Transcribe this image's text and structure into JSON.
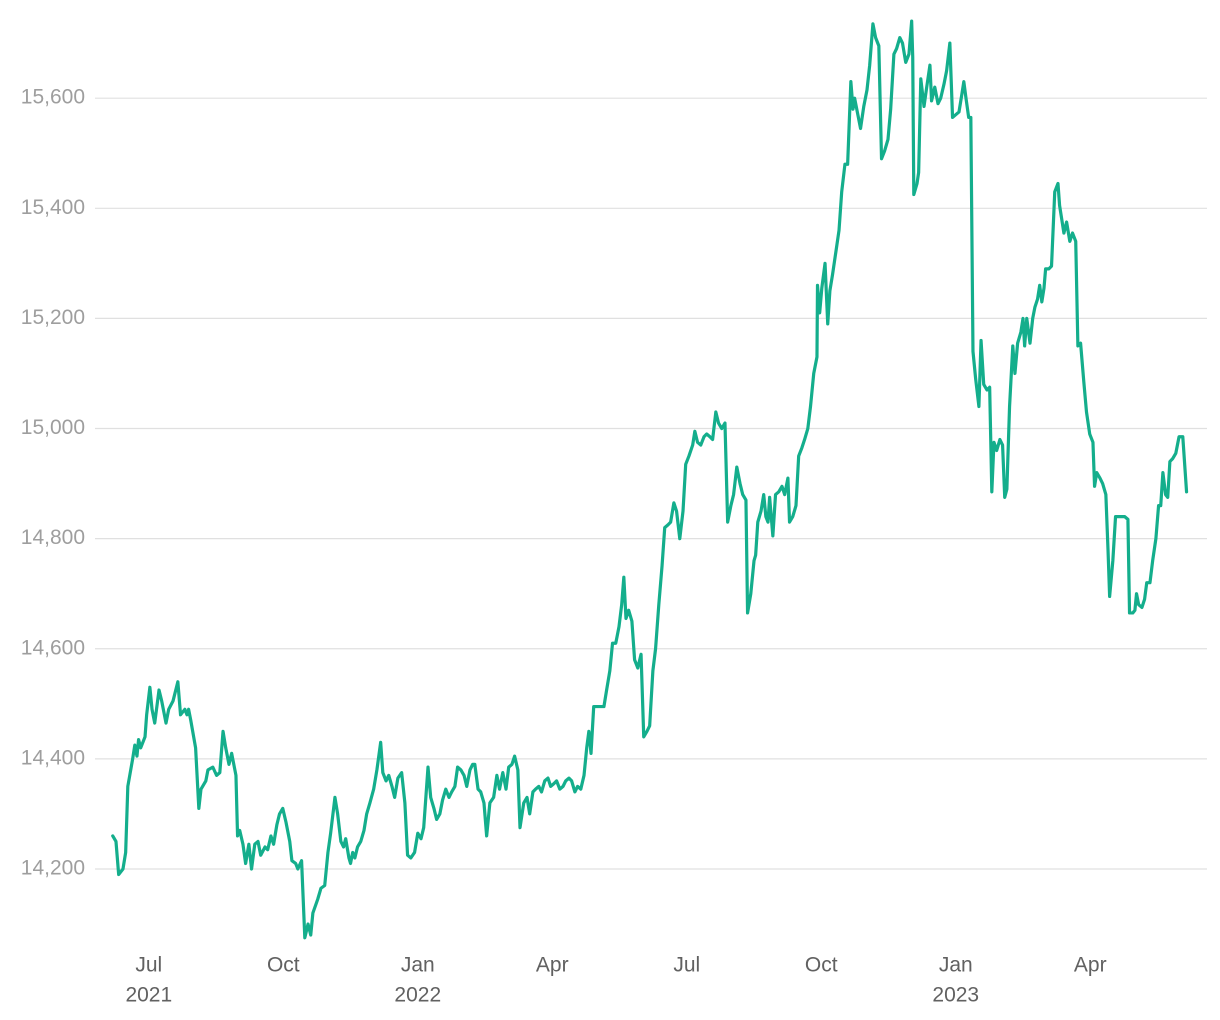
{
  "chart_data": {
    "type": "line",
    "color": "#14ae8c",
    "grid": true,
    "ylim": [
      14071,
      15742
    ],
    "yticks": [
      {
        "value": 14200,
        "label": "14,200"
      },
      {
        "value": 14400,
        "label": "14,400"
      },
      {
        "value": 14600,
        "label": "14,600"
      },
      {
        "value": 14800,
        "label": "14,800"
      },
      {
        "value": 15000,
        "label": "15,000"
      },
      {
        "value": 15200,
        "label": "15,200"
      },
      {
        "value": 15400,
        "label": "15,400"
      },
      {
        "value": 15600,
        "label": "15,600"
      }
    ],
    "xlim": [
      2021.4,
      2023.467
    ],
    "xticks": [
      {
        "value": 2021.5,
        "label": "Jul",
        "sublabel": "2021"
      },
      {
        "value": 2021.75,
        "label": "Oct"
      },
      {
        "value": 2022.0,
        "label": "Jan",
        "sublabel": "2022"
      },
      {
        "value": 2022.25,
        "label": "Apr"
      },
      {
        "value": 2022.5,
        "label": "Jul"
      },
      {
        "value": 2022.75,
        "label": "Oct"
      },
      {
        "value": 2023.0,
        "label": "Jan",
        "sublabel": "2023"
      },
      {
        "value": 2023.25,
        "label": "Apr"
      }
    ],
    "x": [
      2021.433,
      2021.439,
      2021.444,
      2021.452,
      2021.457,
      2021.461,
      2021.47,
      2021.474,
      2021.478,
      2021.481,
      2021.485,
      2021.493,
      2021.496,
      2021.502,
      2021.506,
      2021.511,
      2021.519,
      2021.524,
      2021.532,
      2021.537,
      2021.545,
      2021.554,
      2021.559,
      2021.567,
      2021.571,
      2021.574,
      2021.578,
      2021.587,
      2021.593,
      2021.597,
      2021.606,
      2021.61,
      2021.619,
      2021.626,
      2021.632,
      2021.638,
      2021.643,
      2021.649,
      2021.654,
      2021.662,
      2021.665,
      2021.669,
      2021.675,
      2021.68,
      2021.686,
      2021.691,
      2021.697,
      2021.703,
      2021.708,
      2021.716,
      2021.721,
      2021.727,
      2021.732,
      2021.738,
      2021.743,
      2021.749,
      2021.755,
      2021.762,
      2021.766,
      2021.773,
      2021.777,
      2021.784,
      2021.79,
      2021.796,
      2021.801,
      2021.805,
      2021.814,
      2021.82,
      2021.827,
      2021.833,
      2021.838,
      2021.846,
      2021.851,
      2021.857,
      2021.862,
      2021.866,
      2021.872,
      2021.875,
      2021.879,
      2021.883,
      2021.888,
      2021.894,
      2021.9,
      2021.905,
      2021.911,
      2021.918,
      2021.924,
      2021.931,
      2021.935,
      2021.941,
      2021.946,
      2021.952,
      2021.957,
      2021.963,
      2021.97,
      2021.976,
      2021.981,
      2021.987,
      2021.994,
      2022.0,
      2022.006,
      2022.011,
      2022.019,
      2022.024,
      2022.03,
      2022.035,
      2022.041,
      2022.046,
      2022.052,
      2022.058,
      2022.063,
      2022.069,
      2022.074,
      2022.08,
      2022.086,
      2022.091,
      2022.097,
      2022.102,
      2022.106,
      2022.112,
      2022.117,
      2022.123,
      2022.128,
      2022.134,
      2022.141,
      2022.147,
      2022.152,
      2022.158,
      2022.164,
      2022.169,
      2022.175,
      2022.18,
      2022.186,
      2022.19,
      2022.197,
      2022.203,
      2022.208,
      2022.214,
      2022.219,
      2022.225,
      2022.23,
      2022.236,
      2022.242,
      2022.247,
      2022.253,
      2022.258,
      2022.264,
      2022.27,
      2022.275,
      2022.281,
      2022.286,
      2022.292,
      2022.297,
      2022.303,
      2022.309,
      2022.314,
      2022.318,
      2022.322,
      2022.327,
      2022.335,
      2022.346,
      2022.351,
      2022.357,
      2022.362,
      2022.368,
      2022.374,
      2022.379,
      2022.383,
      2022.387,
      2022.392,
      2022.398,
      2022.403,
      2022.409,
      2022.415,
      2022.42,
      2022.426,
      2022.431,
      2022.437,
      2022.442,
      2022.448,
      2022.454,
      2022.459,
      2022.465,
      2022.47,
      2022.476,
      2022.481,
      2022.487,
      2022.493,
      2022.498,
      2022.504,
      2022.511,
      2022.515,
      2022.52,
      2022.526,
      2022.532,
      2022.537,
      2022.543,
      2022.548,
      2022.554,
      2022.559,
      2022.565,
      2022.571,
      2022.576,
      2022.582,
      2022.587,
      2022.593,
      2022.599,
      2022.604,
      2022.61,
      2022.613,
      2022.619,
      2022.625,
      2022.628,
      2022.632,
      2022.638,
      2022.643,
      2022.647,
      2022.651,
      2022.654,
      2022.66,
      2022.665,
      2022.671,
      2022.677,
      2022.682,
      2022.688,
      2022.691,
      2022.697,
      2022.703,
      2022.708,
      2022.714,
      2022.719,
      2022.725,
      2022.73,
      2022.736,
      2022.742,
      2022.743,
      2022.747,
      2022.751,
      2022.757,
      2022.762,
      2022.766,
      2022.771,
      2022.777,
      2022.783,
      2022.788,
      2022.794,
      2022.799,
      2022.805,
      2022.809,
      2022.812,
      2022.818,
      2022.823,
      2022.829,
      2022.835,
      2022.84,
      2022.846,
      2022.851,
      2022.857,
      2022.862,
      2022.868,
      2022.874,
      2022.879,
      2022.885,
      2022.89,
      2022.896,
      2022.901,
      2022.907,
      2022.913,
      2022.918,
      2022.92,
      2022.922,
      2022.928,
      2022.931,
      2022.935,
      2022.941,
      2022.946,
      2022.952,
      2022.955,
      2022.961,
      2022.967,
      2022.972,
      2022.978,
      2022.983,
      2022.989,
      2022.994,
      2023.0,
      2023.006,
      2023.011,
      2023.015,
      2023.019,
      2023.024,
      2023.028,
      2023.032,
      2023.037,
      2023.043,
      2023.047,
      2023.052,
      2023.058,
      2023.063,
      2023.067,
      2023.071,
      2023.076,
      2023.082,
      2023.087,
      2023.091,
      2023.095,
      2023.1,
      2023.106,
      2023.11,
      2023.115,
      2023.121,
      2023.125,
      2023.128,
      2023.132,
      2023.138,
      2023.143,
      2023.147,
      2023.152,
      2023.156,
      2023.16,
      2023.164,
      2023.167,
      2023.173,
      2023.178,
      2023.184,
      2023.19,
      2023.193,
      2023.197,
      2023.201,
      2023.206,
      2023.212,
      2023.217,
      2023.223,
      2023.227,
      2023.232,
      2023.238,
      2023.243,
      2023.249,
      2023.255,
      2023.258,
      2023.262,
      2023.268,
      2023.273,
      2023.279,
      2023.283,
      2023.286,
      2023.292,
      2023.297,
      2023.303,
      2023.309,
      2023.314,
      2023.32,
      2023.323,
      2023.329,
      2023.333,
      2023.336,
      2023.34,
      2023.346,
      2023.351,
      2023.355,
      2023.361,
      2023.366,
      2023.372,
      2023.377,
      2023.381,
      2023.385,
      2023.39,
      2023.394,
      2023.398,
      2023.403,
      2023.409,
      2023.415,
      2023.422,
      2023.429
    ],
    "values": [
      14260,
      14250,
      14190,
      14200,
      14230,
      14350,
      14400,
      14425,
      14405,
      14435,
      14420,
      14440,
      14480,
      14530,
      14490,
      14465,
      14525,
      14505,
      14465,
      14490,
      14505,
      14540,
      14480,
      14490,
      14480,
      14490,
      14470,
      14420,
      14310,
      14345,
      14360,
      14380,
      14385,
      14370,
      14375,
      14450,
      14420,
      14390,
      14410,
      14370,
      14260,
      14270,
      14245,
      14210,
      14245,
      14200,
      14245,
      14250,
      14225,
      14240,
      14235,
      14260,
      14245,
      14280,
      14300,
      14310,
      14285,
      14250,
      14215,
      14210,
      14200,
      14215,
      14075,
      14100,
      14080,
      14120,
      14145,
      14165,
      14170,
      14230,
      14265,
      14330,
      14300,
      14250,
      14240,
      14255,
      14220,
      14210,
      14230,
      14220,
      14240,
      14250,
      14270,
      14300,
      14320,
      14345,
      14380,
      14430,
      14375,
      14360,
      14370,
      14350,
      14330,
      14365,
      14375,
      14320,
      14225,
      14220,
      14230,
      14265,
      14255,
      14275,
      14385,
      14330,
      14310,
      14290,
      14300,
      14325,
      14345,
      14330,
      14340,
      14350,
      14385,
      14380,
      14370,
      14350,
      14380,
      14390,
      14390,
      14345,
      14340,
      14320,
      14260,
      14320,
      14330,
      14370,
      14345,
      14375,
      14345,
      14385,
      14390,
      14405,
      14380,
      14275,
      14320,
      14330,
      14300,
      14340,
      14345,
      14350,
      14340,
      14360,
      14365,
      14350,
      14355,
      14360,
      14345,
      14350,
      14360,
      14365,
      14360,
      14340,
      14350,
      14345,
      14370,
      14420,
      14450,
      14410,
      14495,
      14495,
      14495,
      14525,
      14560,
      14610,
      14610,
      14640,
      14680,
      14730,
      14655,
      14670,
      14650,
      14580,
      14565,
      14590,
      14440,
      14450,
      14460,
      14560,
      14600,
      14680,
      14750,
      14820,
      14825,
      14830,
      14865,
      14850,
      14800,
      14850,
      14935,
      14950,
      14970,
      14995,
      14975,
      14970,
      14985,
      14990,
      14985,
      14980,
      15030,
      15010,
      15000,
      15010,
      14830,
      14860,
      14880,
      14930,
      14900,
      14880,
      14870,
      14665,
      14700,
      14760,
      14770,
      14830,
      14850,
      14880,
      14840,
      14830,
      14875,
      14805,
      14880,
      14885,
      14895,
      14880,
      14910,
      14830,
      14840,
      14860,
      14950,
      14965,
      14980,
      15000,
      15040,
      15100,
      15130,
      15260,
      15210,
      15255,
      15300,
      15190,
      15250,
      15280,
      15320,
      15360,
      15430,
      15480,
      15480,
      15630,
      15580,
      15600,
      15570,
      15545,
      15585,
      15615,
      15660,
      15735,
      15710,
      15695,
      15490,
      15505,
      15525,
      15580,
      15680,
      15690,
      15710,
      15700,
      15665,
      15680,
      15740,
      15675,
      15425,
      15445,
      15465,
      15635,
      15585,
      15620,
      15660,
      15595,
      15620,
      15590,
      15600,
      15625,
      15650,
      15700,
      15565,
      15570,
      15575,
      15605,
      15630,
      15600,
      15565,
      15565,
      15140,
      15090,
      15040,
      15160,
      15080,
      15070,
      15075,
      14885,
      14975,
      14960,
      14980,
      14970,
      14875,
      14890,
      15040,
      15150,
      15100,
      15155,
      15175,
      15200,
      15150,
      15200,
      15155,
      15200,
      15220,
      15235,
      15260,
      15230,
      15255,
      15290,
      15290,
      15295,
      15430,
      15445,
      15405,
      15380,
      15355,
      15375,
      15340,
      15355,
      15340,
      15150,
      15155,
      15085,
      15030,
      14990,
      14975,
      14895,
      14920,
      14910,
      14900,
      14880,
      14780,
      14695,
      14760,
      14840,
      14840,
      14840,
      14840,
      14835,
      14665,
      14665,
      14670,
      14700,
      14680,
      14675,
      14690,
      14720,
      14720,
      14760,
      14800,
      14860,
      14860,
      14920,
      14880,
      14875,
      14940,
      14945,
      14955,
      14985,
      14985,
      14885
    ]
  }
}
